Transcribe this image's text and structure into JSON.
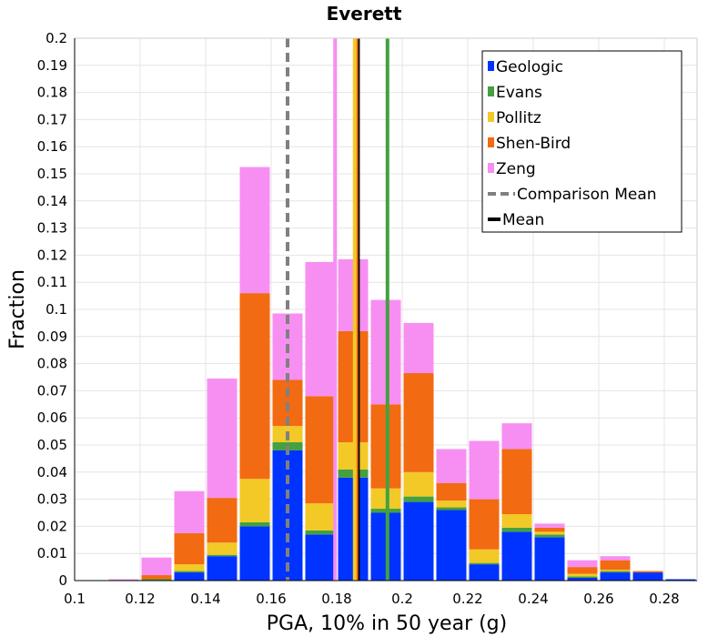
{
  "chart_data": {
    "type": "bar",
    "stacked": true,
    "title": "Everett",
    "xlabel": "PGA, 10% in 50 year (g)",
    "ylabel": "Fraction",
    "xlim": [
      0.1,
      0.29
    ],
    "ylim": [
      0,
      0.2
    ],
    "xticks": [
      "0.1",
      "0.12",
      "0.14",
      "0.16",
      "0.18",
      "0.2",
      "0.22",
      "0.24",
      "0.26",
      "0.28"
    ],
    "yticks": [
      "0",
      "0.01",
      "0.02",
      "0.03",
      "0.04",
      "0.05",
      "0.06",
      "0.07",
      "0.08",
      "0.09",
      "0.1",
      "0.11",
      "0.12",
      "0.13",
      "0.14",
      "0.15",
      "0.16",
      "0.17",
      "0.18",
      "0.19",
      "0.2"
    ],
    "bin_width": 0.01,
    "bins": [
      0.11,
      0.12,
      0.13,
      0.14,
      0.15,
      0.16,
      0.17,
      0.18,
      0.19,
      0.2,
      0.21,
      0.22,
      0.23,
      0.24,
      0.25,
      0.26,
      0.27,
      0.28
    ],
    "series": [
      {
        "name": "Geologic",
        "color": "#0033ff",
        "values": [
          0,
          0,
          0.003,
          0.009,
          0.02,
          0.048,
          0.017,
          0.038,
          0.025,
          0.029,
          0.026,
          0.006,
          0.018,
          0.016,
          0.001,
          0.003,
          0.003,
          0.0005
        ]
      },
      {
        "name": "Evans",
        "color": "#44a040",
        "values": [
          0,
          0.0005,
          0.0005,
          0.0005,
          0.0015,
          0.003,
          0.0015,
          0.003,
          0.0015,
          0.002,
          0.001,
          0.0005,
          0.0015,
          0.001,
          0.0005,
          0.0005,
          0,
          0
        ]
      },
      {
        "name": "Pollitz",
        "color": "#f2c927",
        "values": [
          0,
          0,
          0.0025,
          0.0045,
          0.016,
          0.006,
          0.01,
          0.01,
          0.0075,
          0.009,
          0.0025,
          0.005,
          0.005,
          0.001,
          0.001,
          0.0005,
          0,
          0
        ]
      },
      {
        "name": "Shen-Bird",
        "color": "#f26a12",
        "values": [
          0,
          0.0015,
          0.0115,
          0.0165,
          0.0685,
          0.017,
          0.0395,
          0.041,
          0.031,
          0.0365,
          0.0065,
          0.0185,
          0.024,
          0.0015,
          0.0025,
          0.0035,
          0.0005,
          0
        ]
      },
      {
        "name": "Zeng",
        "color": "#f78ff2",
        "values": [
          0.0005,
          0.0065,
          0.0155,
          0.044,
          0.0465,
          0.0245,
          0.0495,
          0.0265,
          0.0385,
          0.0185,
          0.0125,
          0.0215,
          0.0095,
          0.0015,
          0.0025,
          0.0015,
          0,
          0
        ]
      }
    ],
    "lines": [
      {
        "name": "Comparison Mean",
        "x": 0.165,
        "color": "#808080",
        "style": "dashed"
      },
      {
        "name": "Mean",
        "x": 0.1865,
        "color": "#000000",
        "style": "solid"
      },
      {
        "name": "Zeng",
        "x": 0.1795,
        "color": "#f78ff2",
        "style": "solid"
      },
      {
        "name": "Shen-Bird",
        "x": 0.186,
        "color": "#f26a12",
        "style": "solid"
      },
      {
        "name": "Pollitz",
        "x": 0.1855,
        "color": "#f2c927",
        "style": "solid"
      },
      {
        "name": "Evans",
        "x": 0.1955,
        "color": "#44a040",
        "style": "solid"
      }
    ],
    "legend": {
      "position": "top-right",
      "entries": [
        {
          "label": "Geologic",
          "color": "#0033ff",
          "kind": "box"
        },
        {
          "label": "Evans",
          "color": "#44a040",
          "kind": "box"
        },
        {
          "label": "Pollitz",
          "color": "#f2c927",
          "kind": "box"
        },
        {
          "label": "Shen-Bird",
          "color": "#f26a12",
          "kind": "box"
        },
        {
          "label": "Zeng",
          "color": "#f78ff2",
          "kind": "box"
        },
        {
          "label": "Comparison Mean",
          "color": "#808080",
          "kind": "dashed"
        },
        {
          "label": "Mean",
          "color": "#000000",
          "kind": "solid"
        }
      ]
    }
  }
}
